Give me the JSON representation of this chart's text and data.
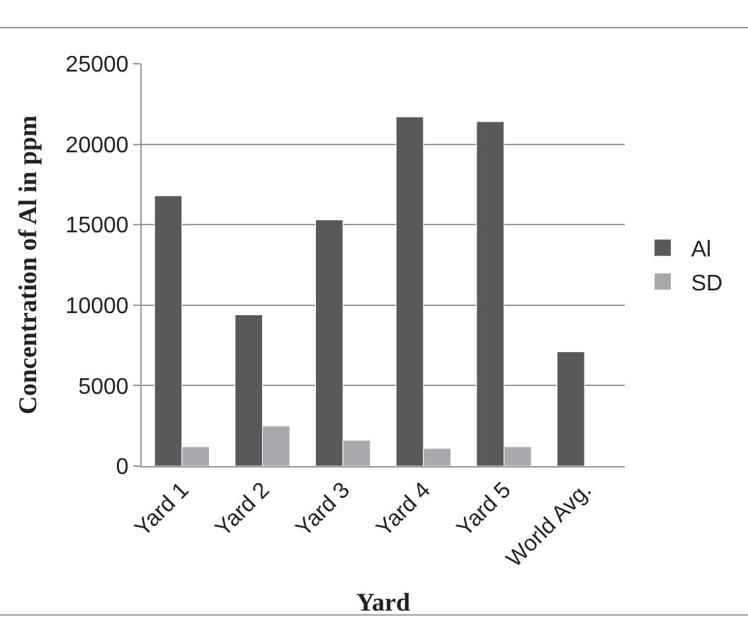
{
  "chart_data": {
    "type": "bar",
    "xlabel": "Yard",
    "ylabel": "Concentration of Al in ppm",
    "categories": [
      "Yard 1",
      "Yard 2",
      "Yard 3",
      "Yard 4",
      "Yard 5",
      "World Avg."
    ],
    "series": [
      {
        "name": "Al",
        "color": "#58595b",
        "values": [
          16800,
          9400,
          15300,
          21700,
          21400,
          7100
        ]
      },
      {
        "name": "SD",
        "color": "#a7a9ac",
        "values": [
          1200,
          2500,
          1600,
          1100,
          1200,
          null
        ]
      }
    ],
    "ylim": [
      0,
      25000
    ],
    "yticks": [
      0,
      5000,
      10000,
      15000,
      20000,
      25000
    ],
    "grid": "y",
    "legend": "right"
  }
}
